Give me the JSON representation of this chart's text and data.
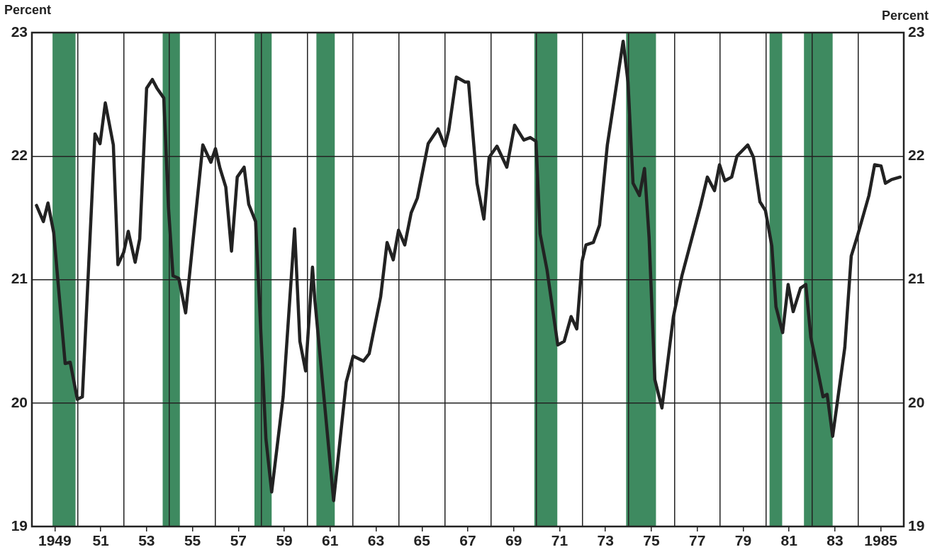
{
  "chart_data": {
    "type": "line",
    "ylabel": "Percent",
    "y2label": "Percent",
    "x": [
      1948.2,
      1948.5,
      1948.7,
      1948.95,
      1949.45,
      1949.67,
      1949.98,
      1950.2,
      1950.75,
      1950.97,
      1951.2,
      1951.55,
      1951.75,
      1952.0,
      1952.2,
      1952.5,
      1952.7,
      1953.0,
      1953.25,
      1953.45,
      1953.75,
      1953.95,
      1954.15,
      1954.4,
      1954.7,
      1955.45,
      1955.8,
      1956.0,
      1956.2,
      1956.45,
      1956.7,
      1956.95,
      1957.25,
      1957.45,
      1957.75,
      1958.2,
      1958.45,
      1958.95,
      1959.45,
      1959.68,
      1959.93,
      1960.23,
      1960.33,
      1961.15,
      1961.7,
      1962.0,
      1962.45,
      1962.7,
      1963.2,
      1963.48,
      1963.75,
      1963.98,
      1964.25,
      1964.53,
      1964.8,
      1965.27,
      1965.7,
      1966.0,
      1966.17,
      1966.5,
      1966.88,
      1967.03,
      1967.4,
      1967.7,
      1967.93,
      1968.27,
      1968.7,
      1969.04,
      1969.44,
      1969.72,
      1969.97,
      1970.15,
      1970.45,
      1970.92,
      1971.2,
      1971.5,
      1971.75,
      1971.98,
      1972.15,
      1972.47,
      1972.74,
      1973.08,
      1973.4,
      1973.77,
      1973.98,
      1974.2,
      1974.48,
      1974.7,
      1974.9,
      1975.15,
      1975.46,
      1975.96,
      1976.33,
      1977.13,
      1977.44,
      1977.75,
      1977.97,
      1978.2,
      1978.5,
      1978.73,
      1979.2,
      1979.45,
      1979.73,
      1979.97,
      1980.25,
      1980.43,
      1980.72,
      1980.96,
      1981.18,
      1981.5,
      1981.73,
      1981.95,
      1982.2,
      1982.48,
      1982.66,
      1982.9,
      1983.43,
      1983.71,
      1983.96,
      1984.48,
      1984.73,
      1985.01,
      1985.2,
      1985.47,
      1985.84
    ],
    "series": [
      {
        "color": "#222222",
        "values": [
          21.6,
          21.47,
          21.62,
          21.38,
          20.32,
          20.33,
          20.03,
          20.05,
          22.18,
          22.1,
          22.43,
          22.09,
          21.12,
          21.22,
          21.39,
          21.14,
          21.33,
          22.55,
          22.62,
          22.55,
          22.47,
          21.59,
          21.03,
          21.01,
          20.73,
          22.09,
          21.95,
          22.06,
          21.9,
          21.75,
          21.23,
          21.83,
          21.91,
          21.61,
          21.47,
          19.71,
          19.28,
          20.05,
          21.41,
          20.5,
          20.26,
          21.1,
          20.84,
          19.21,
          20.17,
          20.38,
          20.34,
          20.4,
          20.86,
          21.3,
          21.16,
          21.4,
          21.28,
          21.54,
          21.66,
          22.1,
          22.22,
          22.08,
          22.21,
          22.64,
          22.6,
          22.6,
          21.78,
          21.49,
          21.99,
          22.08,
          21.91,
          22.25,
          22.13,
          22.15,
          22.12,
          21.37,
          21.08,
          20.47,
          20.5,
          20.7,
          20.6,
          21.15,
          21.28,
          21.3,
          21.44,
          22.09,
          22.48,
          22.93,
          22.6,
          21.78,
          21.68,
          21.9,
          21.34,
          20.19,
          19.96,
          20.7,
          21.03,
          21.59,
          21.83,
          21.72,
          21.93,
          21.8,
          21.83,
          22.0,
          22.09,
          21.99,
          21.63,
          21.56,
          21.27,
          20.78,
          20.57,
          20.96,
          20.74,
          20.93,
          20.96,
          20.53,
          20.31,
          20.05,
          20.07,
          19.73,
          20.45,
          21.19,
          21.34,
          21.68,
          21.93,
          21.92,
          21.78,
          21.81,
          21.83
        ]
      }
    ],
    "xlim": [
      1948,
      1986
    ],
    "xticks": [
      {
        "value": 1949,
        "label": "1949"
      },
      {
        "value": 1950,
        "label": null
      },
      {
        "value": 1951,
        "label": "51"
      },
      {
        "value": 1952,
        "label": null
      },
      {
        "value": 1953,
        "label": "53"
      },
      {
        "value": 1954,
        "label": null
      },
      {
        "value": 1955,
        "label": "55"
      },
      {
        "value": 1956,
        "label": null
      },
      {
        "value": 1957,
        "label": "57"
      },
      {
        "value": 1958,
        "label": null
      },
      {
        "value": 1959,
        "label": "59"
      },
      {
        "value": 1960,
        "label": null
      },
      {
        "value": 1961,
        "label": "61"
      },
      {
        "value": 1962,
        "label": null
      },
      {
        "value": 1963,
        "label": "63"
      },
      {
        "value": 1964,
        "label": null
      },
      {
        "value": 1965,
        "label": "65"
      },
      {
        "value": 1966,
        "label": null
      },
      {
        "value": 1967,
        "label": "67"
      },
      {
        "value": 1968,
        "label": null
      },
      {
        "value": 1969,
        "label": "69"
      },
      {
        "value": 1970,
        "label": null
      },
      {
        "value": 1971,
        "label": "71"
      },
      {
        "value": 1972,
        "label": null
      },
      {
        "value": 1973,
        "label": "73"
      },
      {
        "value": 1974,
        "label": null
      },
      {
        "value": 1975,
        "label": "75"
      },
      {
        "value": 1976,
        "label": null
      },
      {
        "value": 1977,
        "label": "77"
      },
      {
        "value": 1978,
        "label": null
      },
      {
        "value": 1979,
        "label": "79"
      },
      {
        "value": 1980,
        "label": null
      },
      {
        "value": 1981,
        "label": "81"
      },
      {
        "value": 1982,
        "label": null
      },
      {
        "value": 1983,
        "label": "83"
      },
      {
        "value": 1984,
        "label": null
      },
      {
        "value": 1985,
        "label": "1985"
      }
    ],
    "ylim": [
      19,
      23
    ],
    "yticks": [
      19,
      20,
      21,
      22,
      23
    ],
    "y2lim": [
      19,
      23
    ],
    "y2ticks": [
      19,
      20,
      21,
      22,
      23
    ],
    "bands": [
      {
        "axis": "x",
        "from": 1948.9,
        "to": 1949.9,
        "color": "#3e8a60"
      },
      {
        "axis": "x",
        "from": 1953.7,
        "to": 1954.45,
        "color": "#3e8a60"
      },
      {
        "axis": "x",
        "from": 1957.7,
        "to": 1958.45,
        "color": "#3e8a60"
      },
      {
        "axis": "x",
        "from": 1960.4,
        "to": 1961.2,
        "color": "#3e8a60"
      },
      {
        "axis": "x",
        "from": 1969.9,
        "to": 1970.9,
        "color": "#3e8a60"
      },
      {
        "axis": "x",
        "from": 1973.9,
        "to": 1975.2,
        "color": "#3e8a60"
      },
      {
        "axis": "x",
        "from": 1980.15,
        "to": 1980.7,
        "color": "#3e8a60"
      },
      {
        "axis": "x",
        "from": 1981.65,
        "to": 1982.9,
        "color": "#3e8a60"
      }
    ],
    "grid": true,
    "marker": "none",
    "line_style": "solid"
  }
}
